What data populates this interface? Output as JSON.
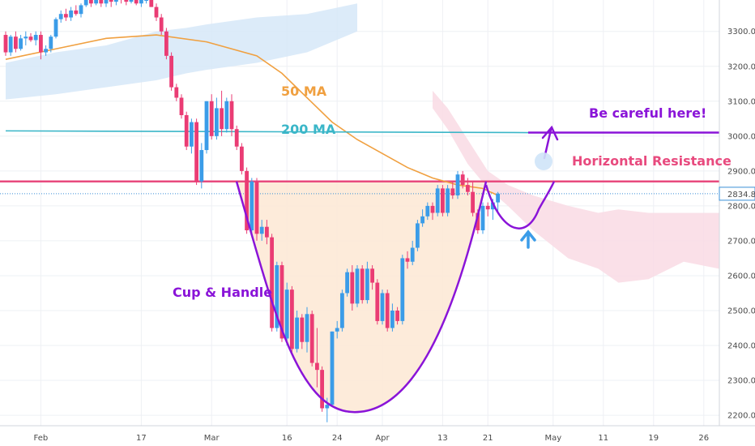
{
  "chart_data": {
    "type": "candlestick",
    "title": "",
    "ylim": [
      2170,
      3390
    ],
    "y_ticks": [
      2200,
      2300,
      2400,
      2500,
      2600,
      2700,
      2800,
      2900,
      3000,
      3100,
      3200,
      3300
    ],
    "x_ticks": [
      {
        "label": "Feb",
        "index": 7
      },
      {
        "label": "17",
        "index": 27
      },
      {
        "label": "Mar",
        "index": 41
      },
      {
        "label": "16",
        "index": 56
      },
      {
        "label": "24",
        "index": 66
      },
      {
        "label": "Apr",
        "index": 75
      },
      {
        "label": "13",
        "index": 87
      },
      {
        "label": "21",
        "index": 96
      },
      {
        "label": "May",
        "index": 109
      },
      {
        "label": "11",
        "index": 119
      },
      {
        "label": "19",
        "index": 129
      },
      {
        "label": "26",
        "index": 139
      }
    ],
    "last_price": "2834.8",
    "ohlc": [
      [
        3290,
        3300,
        3230,
        3240
      ],
      [
        3240,
        3290,
        3230,
        3285
      ],
      [
        3285,
        3300,
        3240,
        3250
      ],
      [
        3250,
        3290,
        3245,
        3280
      ],
      [
        3280,
        3300,
        3260,
        3285
      ],
      [
        3285,
        3295,
        3270,
        3275
      ],
      [
        3275,
        3300,
        3260,
        3290
      ],
      [
        3290,
        3300,
        3220,
        3240
      ],
      [
        3240,
        3260,
        3230,
        3250
      ],
      [
        3250,
        3290,
        3240,
        3285
      ],
      [
        3285,
        3340,
        3280,
        3335
      ],
      [
        3335,
        3360,
        3325,
        3350
      ],
      [
        3350,
        3365,
        3330,
        3340
      ],
      [
        3340,
        3370,
        3330,
        3360
      ],
      [
        3360,
        3375,
        3345,
        3350
      ],
      [
        3350,
        3380,
        3340,
        3375
      ],
      [
        3375,
        3395,
        3370,
        3390
      ],
      [
        3390,
        3395,
        3370,
        3380
      ],
      [
        3380,
        3400,
        3375,
        3395
      ],
      [
        3395,
        3400,
        3370,
        3380
      ],
      [
        3380,
        3400,
        3370,
        3390
      ],
      [
        3390,
        3395,
        3370,
        3385
      ],
      [
        3385,
        3400,
        3375,
        3395
      ],
      [
        3395,
        3400,
        3380,
        3390
      ],
      [
        3390,
        3400,
        3375,
        3385
      ],
      [
        3385,
        3400,
        3380,
        3395
      ],
      [
        3395,
        3400,
        3375,
        3380
      ],
      [
        3380,
        3400,
        3370,
        3390
      ],
      [
        3390,
        3400,
        3380,
        3390
      ],
      [
        3390,
        3400,
        3370,
        3370
      ],
      [
        3370,
        3380,
        3330,
        3340
      ],
      [
        3340,
        3350,
        3290,
        3300
      ],
      [
        3300,
        3310,
        3220,
        3230
      ],
      [
        3230,
        3240,
        3130,
        3140
      ],
      [
        3140,
        3150,
        3100,
        3110
      ],
      [
        3110,
        3120,
        3050,
        3060
      ],
      [
        3060,
        3070,
        2960,
        2970
      ],
      [
        2970,
        3050,
        2950,
        3040
      ],
      [
        3040,
        3050,
        2860,
        2870
      ],
      [
        2870,
        2980,
        2850,
        2960
      ],
      [
        2960,
        3100,
        2950,
        3100
      ],
      [
        3100,
        3120,
        2990,
        3000
      ],
      [
        3000,
        3110,
        2990,
        3080
      ],
      [
        3080,
        3130,
        3000,
        3020
      ],
      [
        3020,
        3110,
        3010,
        3100
      ],
      [
        3100,
        3120,
        3000,
        3020
      ],
      [
        3020,
        3030,
        2960,
        2970
      ],
      [
        2970,
        2980,
        2890,
        2900
      ],
      [
        2900,
        2910,
        2720,
        2730
      ],
      [
        2730,
        2880,
        2720,
        2870
      ],
      [
        2870,
        2880,
        2700,
        2720
      ],
      [
        2720,
        2760,
        2700,
        2740
      ],
      [
        2740,
        2760,
        2690,
        2710
      ],
      [
        2710,
        2720,
        2440,
        2450
      ],
      [
        2450,
        2640,
        2440,
        2630
      ],
      [
        2630,
        2640,
        2410,
        2420
      ],
      [
        2420,
        2580,
        2400,
        2560
      ],
      [
        2560,
        2570,
        2380,
        2390
      ],
      [
        2390,
        2500,
        2380,
        2480
      ],
      [
        2480,
        2490,
        2390,
        2410
      ],
      [
        2410,
        2510,
        2380,
        2490
      ],
      [
        2490,
        2500,
        2340,
        2350
      ],
      [
        2350,
        2450,
        2280,
        2330
      ],
      [
        2330,
        2340,
        2210,
        2220
      ],
      [
        2220,
        2250,
        2180,
        2230
      ],
      [
        2230,
        2440,
        2225,
        2440
      ],
      [
        2440,
        2470,
        2420,
        2450
      ],
      [
        2450,
        2560,
        2440,
        2550
      ],
      [
        2550,
        2620,
        2540,
        2610
      ],
      [
        2610,
        2630,
        2500,
        2520
      ],
      [
        2520,
        2630,
        2510,
        2620
      ],
      [
        2620,
        2630,
        2520,
        2530
      ],
      [
        2530,
        2640,
        2520,
        2620
      ],
      [
        2620,
        2630,
        2560,
        2580
      ],
      [
        2580,
        2590,
        2460,
        2470
      ],
      [
        2470,
        2560,
        2460,
        2550
      ],
      [
        2550,
        2560,
        2440,
        2450
      ],
      [
        2450,
        2520,
        2440,
        2500
      ],
      [
        2500,
        2510,
        2460,
        2470
      ],
      [
        2470,
        2660,
        2460,
        2650
      ],
      [
        2650,
        2670,
        2620,
        2640
      ],
      [
        2640,
        2700,
        2630,
        2680
      ],
      [
        2680,
        2760,
        2670,
        2750
      ],
      [
        2750,
        2790,
        2740,
        2770
      ],
      [
        2770,
        2810,
        2760,
        2800
      ],
      [
        2800,
        2810,
        2760,
        2780
      ],
      [
        2780,
        2860,
        2770,
        2850
      ],
      [
        2850,
        2860,
        2770,
        2780
      ],
      [
        2780,
        2860,
        2770,
        2850
      ],
      [
        2850,
        2870,
        2820,
        2830
      ],
      [
        2830,
        2900,
        2820,
        2890
      ],
      [
        2890,
        2900,
        2850,
        2860
      ],
      [
        2860,
        2880,
        2830,
        2840
      ],
      [
        2840,
        2870,
        2770,
        2780
      ],
      [
        2780,
        2790,
        2720,
        2730
      ],
      [
        2730,
        2810,
        2720,
        2800
      ],
      [
        2800,
        2810,
        2770,
        2790
      ],
      [
        2790,
        2820,
        2760,
        2810
      ],
      [
        2810,
        2840,
        2780,
        2835
      ]
    ],
    "series": [
      {
        "name": "50 MA",
        "type": "line",
        "color": "#f0a040",
        "x": [
          0,
          10,
          20,
          30,
          40,
          50,
          55,
          60,
          65,
          70,
          75,
          80,
          85,
          90,
          95,
          98
        ],
        "values": [
          3220,
          3250,
          3280,
          3290,
          3270,
          3230,
          3180,
          3110,
          3040,
          2990,
          2950,
          2910,
          2880,
          2860,
          2850,
          2830
        ]
      },
      {
        "name": "200 MA",
        "type": "line",
        "color": "#3ab6c8",
        "x": [
          0,
          10,
          20,
          30,
          40,
          50,
          60,
          70,
          80,
          90,
          98
        ],
        "values": [
          3010,
          3030,
          3045,
          3055,
          3060,
          3060,
          3050,
          3040,
          3030,
          3020,
          3015
        ]
      }
    ],
    "horizontal_lines": [
      {
        "value": 2870,
        "color": "#e84a7e",
        "label": "Horizontal Resistance"
      },
      {
        "value": 3010,
        "color": "#8a14d8",
        "label": "Be careful here!"
      },
      {
        "value": 2835,
        "color": "#3a8fd8",
        "style": "dotted"
      }
    ],
    "annotations": {
      "ma50_label": "50 MA",
      "ma200_label": "200 MA",
      "cup_label": "Cup & Handle",
      "resistance_label": "Horizontal Resistance",
      "careful_label": "Be careful here!"
    },
    "colors": {
      "up": "#3b9ce8",
      "down": "#ea3c74",
      "cup_fill": "#fde9d6",
      "cup_line": "#8a14d8",
      "cloud_blue": "#d6e8f8",
      "cloud_pink": "#f9dbe4"
    }
  }
}
